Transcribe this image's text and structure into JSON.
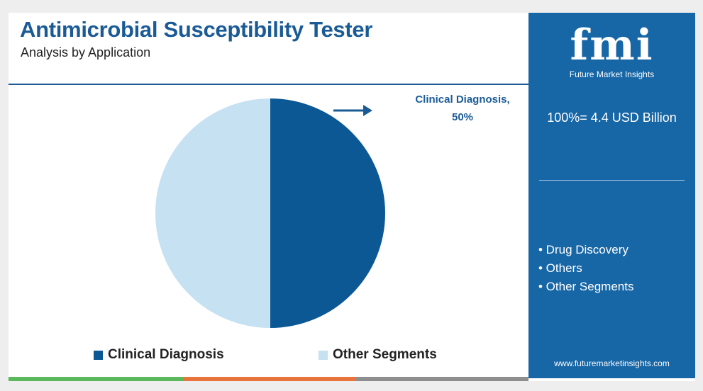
{
  "header": {
    "title": "Antimicrobial Susceptibility Tester",
    "subtitle": "Analysis by Application"
  },
  "logo": {
    "text": "fmi",
    "tagline": "Future Market Insights"
  },
  "sidebar": {
    "total": "100%= 4.4 USD Billion",
    "segments": [
      "• Drug Discovery",
      "• Others",
      "• Other Segments"
    ],
    "url": "www.futuremarketinsights.com"
  },
  "callout": {
    "line1": "Clinical Diagnosis,",
    "line2": "50%"
  },
  "colors": {
    "primary": "#1766a6",
    "dark_slice": "#0b5894",
    "light_slice": "#c6e1f2",
    "title": "#1b5b95",
    "bar_green": "#5cb85c",
    "bar_orange": "#e8743b",
    "bar_gray": "#8e8e8e"
  },
  "chart_data": {
    "type": "pie",
    "title": "Antimicrobial Susceptibility Tester",
    "subtitle": "Analysis by Application",
    "slices": [
      {
        "label": "Clinical Diagnosis",
        "value": 50,
        "color": "#0b5894"
      },
      {
        "label": "Other Segments",
        "value": 50,
        "color": "#c6e1f2"
      }
    ],
    "legend": [
      "Clinical Diagnosis",
      "Other Segments"
    ],
    "legend_position": "bottom",
    "annotations": [
      "Clinical Diagnosis, 50%"
    ]
  }
}
